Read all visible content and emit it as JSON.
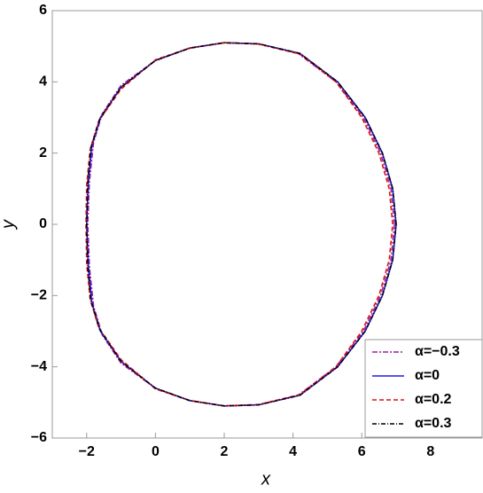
{
  "chart_data": {
    "type": "line",
    "x_label": "x",
    "y_label": "y",
    "xlim": [
      -3,
      9.5
    ],
    "ylim": [
      -6,
      6
    ],
    "xticks": [
      {
        "value": -2,
        "label": "−2"
      },
      0,
      2,
      4,
      6,
      8
    ],
    "yticks": [
      {
        "value": -6,
        "label": "−6"
      },
      {
        "value": -4,
        "label": "−4"
      },
      {
        "value": -2,
        "label": "−2"
      },
      0,
      2,
      4,
      6
    ],
    "legend": "lower right",
    "series": [
      {
        "name": "α=−0.3",
        "color": "#9b1fa8",
        "dash": "6,2,2,2",
        "x": [
          6.95,
          6.85,
          6.55,
          6.05,
          5.25,
          4.15,
          3,
          2,
          1,
          0,
          -1,
          -1.55,
          -1.8,
          -1.92,
          -1.97,
          -1.92,
          -1.8,
          -1.55,
          -1,
          0,
          1,
          2,
          3,
          4.15,
          5.25,
          6.05,
          6.55,
          6.85,
          6.95
        ],
        "values": [
          0,
          1,
          2,
          3,
          4,
          4.8,
          5.07,
          5.1,
          4.95,
          4.6,
          3.9,
          3.1,
          2.3,
          1.2,
          0,
          -1.2,
          -2.3,
          -3.1,
          -3.9,
          -4.6,
          -4.95,
          -5.1,
          -5.07,
          -4.8,
          -4,
          -3,
          -2,
          -1,
          0
        ]
      },
      {
        "name": "α=0",
        "color": "#1f1fe0",
        "dash": "",
        "x": [
          7,
          6.9,
          6.6,
          6.1,
          5.3,
          4.2,
          3,
          2,
          1,
          0,
          -1,
          -1.6,
          -1.85,
          -1.95,
          -2,
          -1.95,
          -1.85,
          -1.6,
          -1,
          0,
          1,
          2,
          3,
          4.2,
          5.3,
          6.1,
          6.6,
          6.9,
          7
        ],
        "values": [
          0,
          1,
          2,
          3,
          4,
          4.8,
          5.07,
          5.1,
          4.95,
          4.6,
          3.85,
          3,
          2.2,
          1.2,
          0,
          -1.2,
          -2.2,
          -3,
          -3.85,
          -4.6,
          -4.95,
          -5.1,
          -5.07,
          -4.8,
          -4,
          -3,
          -2,
          -1,
          0
        ]
      },
      {
        "name": "α=0.2",
        "color": "#e01010",
        "dash": "5,3",
        "x": [
          6.9,
          6.8,
          6.5,
          6.0,
          5.25,
          4.2,
          3,
          2,
          1,
          0,
          -1,
          -1.65,
          -1.9,
          -2,
          -2.02,
          -2,
          -1.9,
          -1.65,
          -1,
          0,
          1,
          2,
          3,
          4.2,
          5.25,
          6.0,
          6.5,
          6.8,
          6.9
        ],
        "values": [
          0,
          1,
          2,
          3,
          4,
          4.78,
          5.06,
          5.1,
          4.95,
          4.62,
          3.8,
          2.9,
          2.1,
          1.1,
          0,
          -1.1,
          -2.1,
          -2.9,
          -3.8,
          -4.62,
          -4.95,
          -5.1,
          -5.06,
          -4.78,
          -4,
          -3,
          -2,
          -1,
          0
        ]
      },
      {
        "name": "α=0.3",
        "color": "#000000",
        "dash": "5,2,1,2",
        "x": [
          7,
          6.9,
          6.6,
          6.1,
          5.3,
          4.2,
          3,
          2,
          1,
          0,
          -1,
          -1.62,
          -1.88,
          -1.97,
          -2,
          -1.97,
          -1.88,
          -1.62,
          -1,
          0,
          1,
          2,
          3,
          4.2,
          5.3,
          6.1,
          6.6,
          6.9,
          7
        ],
        "values": [
          0,
          1,
          2,
          3,
          4,
          4.8,
          5.07,
          5.1,
          4.95,
          4.6,
          3.85,
          2.95,
          2.15,
          1.15,
          0,
          -1.15,
          -2.15,
          -2.95,
          -3.85,
          -4.6,
          -4.95,
          -5.1,
          -5.07,
          -4.8,
          -4,
          -3,
          -2,
          -1,
          0
        ]
      }
    ]
  }
}
